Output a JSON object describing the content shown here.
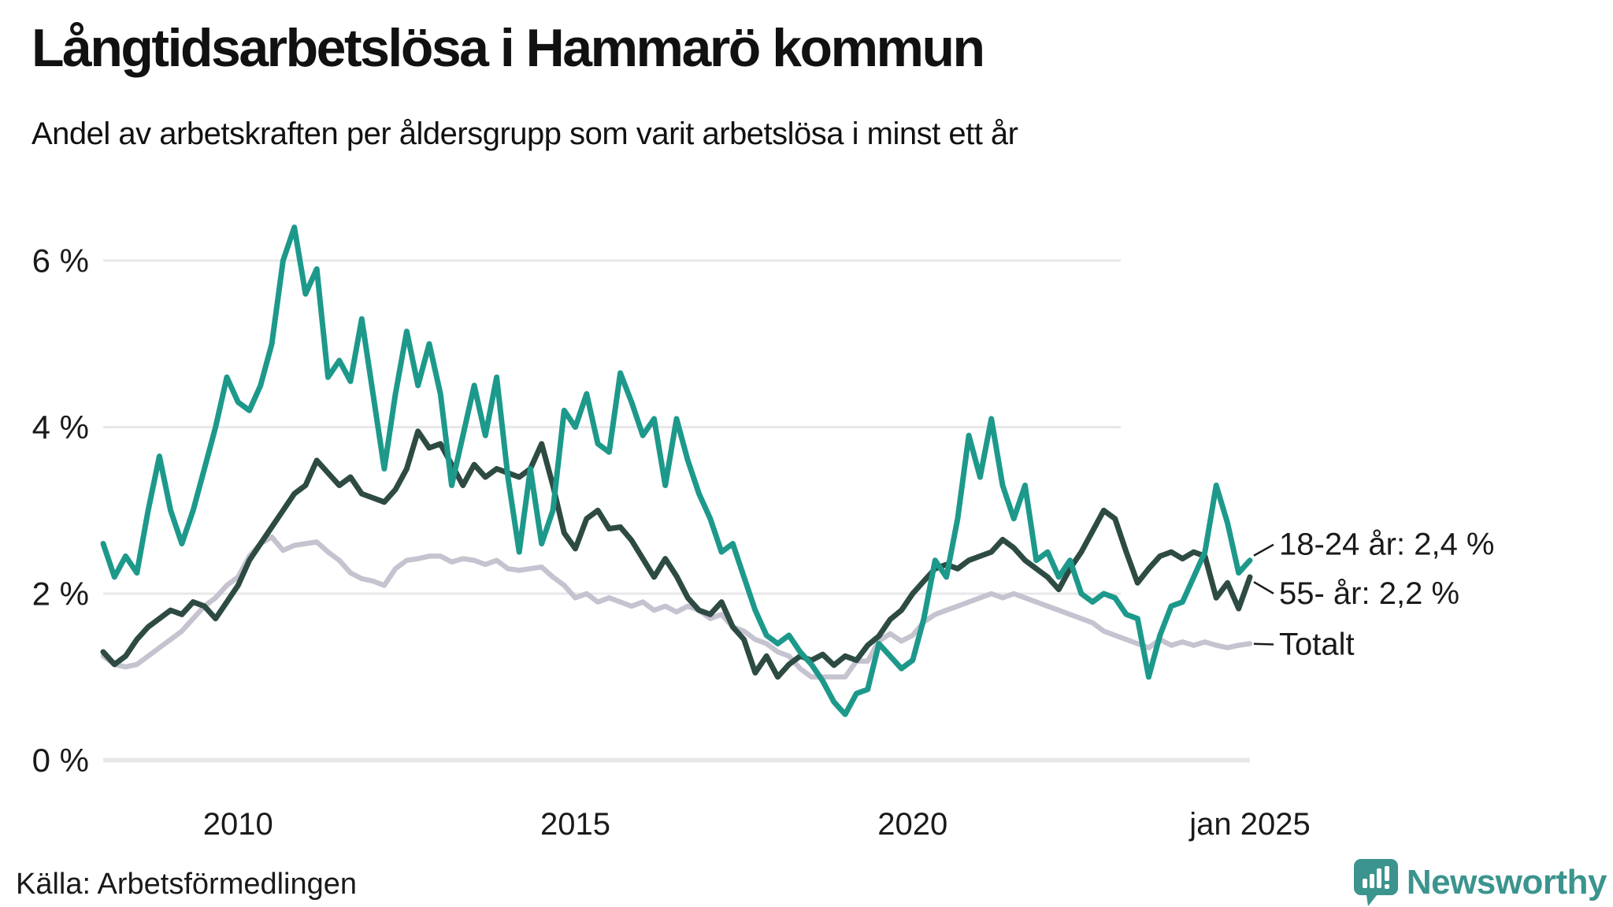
{
  "header": {
    "title": "Långtidsarbetslösa i Hammarö kommun",
    "subtitle": "Andel av arbetskraften per åldersgrupp som varit arbetslösa i minst ett år"
  },
  "footer": {
    "source": "Källa: Arbetsförmedlingen",
    "brand": "Newsworthy",
    "brand_color": "#3b948e",
    "brand_logo_icon": "speech-bubble-bar-chart-icon"
  },
  "colors": {
    "accent_teal": "#1d998b",
    "dark_green": "#2d4b43",
    "light_gray_line": "#c5c3cf",
    "gridline": "#e8e8ea",
    "text": "#1a1a1a"
  },
  "chart_data": {
    "type": "line",
    "title": "Långtidsarbetslösa i Hammarö kommun",
    "subtitle": "Andel av arbetskraften per åldersgrupp som varit arbetslösa i minst ett år",
    "xlabel": "",
    "ylabel": "",
    "x_unit": "time (monthly, jan 2008 – jan 2025)",
    "y_unit": "percent of labour force",
    "x_start_year": 2008.0,
    "x_step_years": 0.1666667,
    "xlim": [
      2008.0,
      2025.0
    ],
    "ylim": [
      0,
      6.6
    ],
    "grid": true,
    "legend_position": "right-end-labels",
    "x_ticks": [
      {
        "value": 2010,
        "label": "2010"
      },
      {
        "value": 2015,
        "label": "2015"
      },
      {
        "value": 2020,
        "label": "2020"
      },
      {
        "value": 2025,
        "label": "jan 2025"
      }
    ],
    "y_ticks": [
      {
        "value": 0,
        "label": "0 %"
      },
      {
        "value": 2,
        "label": "2 %"
      },
      {
        "value": 4,
        "label": "4 %"
      },
      {
        "value": 6,
        "label": "6 %"
      }
    ],
    "series": [
      {
        "name": "18-24 år",
        "end_label": "18-24 år: 2,4 %",
        "last_value": 2.4,
        "color": "#1d998b",
        "values": [
          2.6,
          2.2,
          2.45,
          2.25,
          3.0,
          3.65,
          3.0,
          2.6,
          3.0,
          3.5,
          4.0,
          4.6,
          4.3,
          4.2,
          4.5,
          5.0,
          6.0,
          6.4,
          5.6,
          5.9,
          4.6,
          4.8,
          4.55,
          5.3,
          4.4,
          3.5,
          4.4,
          5.15,
          4.5,
          5.0,
          4.4,
          3.3,
          3.9,
          4.5,
          3.9,
          4.6,
          3.4,
          2.5,
          3.5,
          2.6,
          3.0,
          4.2,
          4.0,
          4.4,
          3.8,
          3.7,
          4.65,
          4.3,
          3.9,
          4.1,
          3.3,
          4.1,
          3.6,
          3.2,
          2.9,
          2.5,
          2.6,
          2.2,
          1.8,
          1.5,
          1.4,
          1.5,
          1.3,
          1.15,
          0.95,
          0.7,
          0.55,
          0.8,
          0.85,
          1.4,
          1.25,
          1.1,
          1.2,
          1.7,
          2.4,
          2.2,
          2.9,
          3.9,
          3.4,
          4.1,
          3.3,
          2.9,
          3.3,
          2.4,
          2.5,
          2.2,
          2.4,
          2.0,
          1.9,
          2.0,
          1.95,
          1.75,
          1.7,
          1.0,
          1.5,
          1.85,
          1.9,
          2.2,
          2.5,
          3.3,
          2.85,
          2.25,
          2.4
        ]
      },
      {
        "name": "55- år",
        "end_label": "55- år: 2,2 %",
        "last_value": 2.2,
        "color": "#2d4b43",
        "values": [
          1.3,
          1.15,
          1.25,
          1.45,
          1.6,
          1.7,
          1.8,
          1.75,
          1.9,
          1.85,
          1.7,
          1.9,
          2.1,
          2.4,
          2.6,
          2.8,
          3.0,
          3.2,
          3.3,
          3.6,
          3.45,
          3.3,
          3.4,
          3.2,
          3.15,
          3.1,
          3.25,
          3.5,
          3.95,
          3.75,
          3.8,
          3.55,
          3.3,
          3.55,
          3.4,
          3.5,
          3.45,
          3.4,
          3.5,
          3.8,
          3.3,
          2.73,
          2.54,
          2.9,
          3.0,
          2.78,
          2.8,
          2.64,
          2.42,
          2.2,
          2.42,
          2.21,
          1.95,
          1.8,
          1.75,
          1.9,
          1.6,
          1.45,
          1.05,
          1.25,
          1.0,
          1.15,
          1.25,
          1.2,
          1.27,
          1.14,
          1.25,
          1.2,
          1.38,
          1.49,
          1.69,
          1.8,
          2.0,
          2.15,
          2.3,
          2.35,
          2.3,
          2.4,
          2.45,
          2.5,
          2.65,
          2.55,
          2.4,
          2.3,
          2.2,
          2.05,
          2.3,
          2.5,
          2.75,
          3.0,
          2.9,
          2.5,
          2.13,
          2.3,
          2.45,
          2.5,
          2.42,
          2.5,
          2.45,
          1.95,
          2.13,
          1.82,
          2.2
        ]
      },
      {
        "name": "Totalt",
        "end_label": "Totalt",
        "last_value": 1.4,
        "color": "#c5c3cf",
        "values": [
          1.25,
          1.15,
          1.12,
          1.15,
          1.25,
          1.35,
          1.45,
          1.55,
          1.7,
          1.85,
          1.95,
          2.1,
          2.2,
          2.45,
          2.6,
          2.68,
          2.52,
          2.58,
          2.6,
          2.62,
          2.5,
          2.4,
          2.25,
          2.18,
          2.15,
          2.1,
          2.3,
          2.4,
          2.42,
          2.45,
          2.45,
          2.38,
          2.42,
          2.4,
          2.35,
          2.4,
          2.3,
          2.28,
          2.3,
          2.32,
          2.2,
          2.1,
          1.95,
          2.0,
          1.9,
          1.95,
          1.9,
          1.85,
          1.9,
          1.8,
          1.85,
          1.78,
          1.85,
          1.8,
          1.7,
          1.75,
          1.6,
          1.55,
          1.45,
          1.4,
          1.3,
          1.25,
          1.1,
          1.0,
          1.0,
          1.0,
          1.0,
          1.19,
          1.19,
          1.43,
          1.52,
          1.43,
          1.5,
          1.66,
          1.75,
          1.8,
          1.85,
          1.9,
          1.95,
          2.0,
          1.95,
          2.0,
          1.95,
          1.9,
          1.85,
          1.8,
          1.75,
          1.7,
          1.65,
          1.55,
          1.5,
          1.45,
          1.4,
          1.35,
          1.45,
          1.38,
          1.42,
          1.38,
          1.42,
          1.38,
          1.35,
          1.38,
          1.4
        ]
      }
    ]
  }
}
